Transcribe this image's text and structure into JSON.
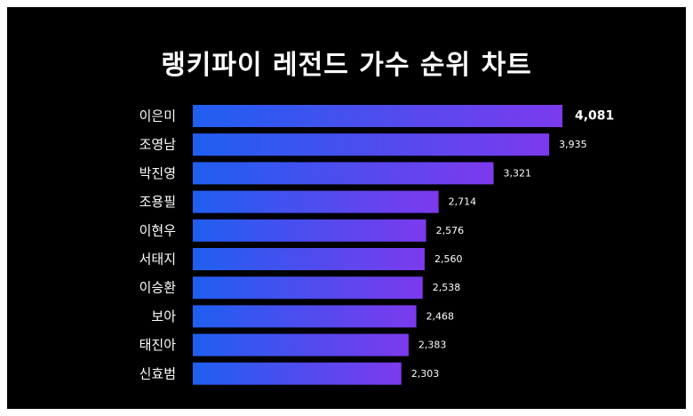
{
  "chart_data": {
    "type": "bar",
    "orientation": "horizontal",
    "title": "랭키파이 레전드 가수 순위 차트",
    "categories": [
      "이은미",
      "조영남",
      "박진영",
      "조용필",
      "이현우",
      "서태지",
      "이승환",
      "보아",
      "태진아",
      "신효범"
    ],
    "values": [
      4081,
      3935,
      3321,
      2714,
      2576,
      2560,
      2538,
      2468,
      2383,
      2303
    ],
    "value_labels": [
      "4,081",
      "3,935",
      "3,321",
      "2,714",
      "2,576",
      "2,560",
      "2,538",
      "2,468",
      "2,383",
      "2,303"
    ],
    "xlim": [
      0,
      4081
    ],
    "grid": false,
    "legend": "none",
    "colors": {
      "background": "#000000",
      "bar_gradient_start": "#1f5ff0",
      "bar_gradient_end": "#7c3aed",
      "text": "#ffffff"
    }
  }
}
